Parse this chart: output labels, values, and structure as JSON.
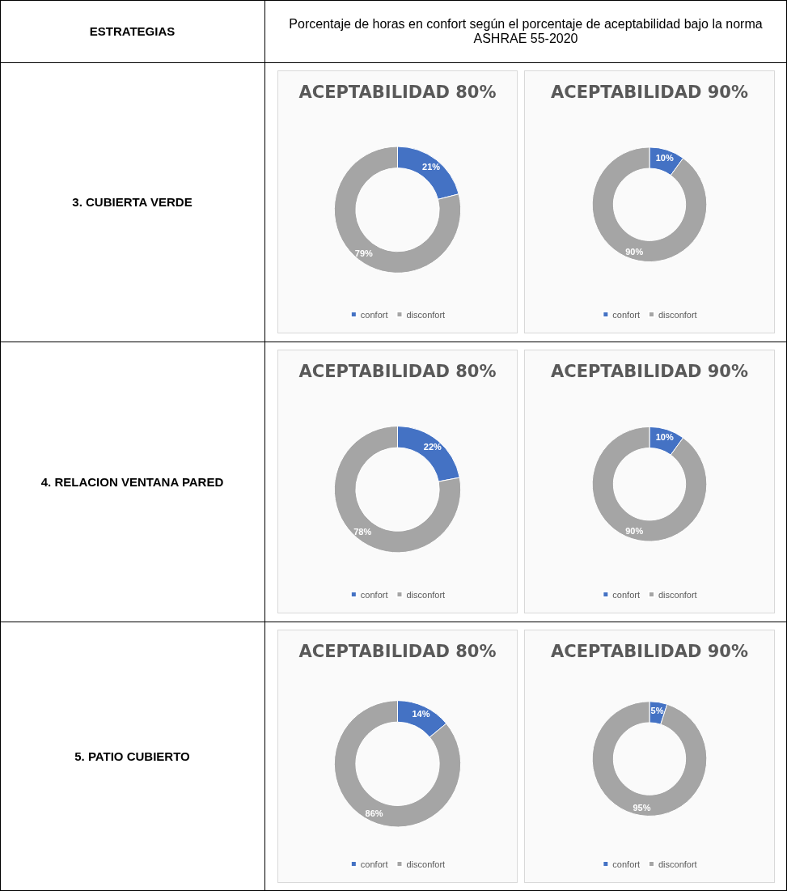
{
  "chart_data": [
    {
      "type": "other",
      "title": "ESTRATEGIAS",
      "subtitle": "Porcentaje de horas en confort según el porcentaje de aceptabilidad bajo la norma ASHRAE 55-2020",
      "annotations": [
        "3. CUBIERTA VERDE",
        "4. RELACION VENTANA PARED",
        "5. PATIO CUBIERTO"
      ]
    },
    {
      "type": "donut",
      "title": "ACEPTABILIDAD 80%",
      "categories": [
        "confort",
        "disconfort"
      ],
      "values": [
        21,
        79
      ],
      "value_labels": [
        "21%",
        "79%"
      ],
      "colors": [
        "#4472c4",
        "#a5a5a5"
      ],
      "legend": "bottom"
    },
    {
      "type": "donut",
      "title": "ACEPTABILIDAD 90%",
      "categories": [
        "confort",
        "disconfort"
      ],
      "values": [
        10,
        90
      ],
      "value_labels": [
        "10%",
        "90%"
      ],
      "colors": [
        "#4472c4",
        "#a5a5a5"
      ],
      "legend": "bottom"
    },
    {
      "type": "donut",
      "title": "ACEPTABILIDAD 80%",
      "categories": [
        "confort",
        "disconfort"
      ],
      "values": [
        22,
        78
      ],
      "value_labels": [
        "22%",
        "78%"
      ],
      "colors": [
        "#4472c4",
        "#a5a5a5"
      ],
      "legend": "bottom"
    },
    {
      "type": "donut",
      "title": "ACEPTABILIDAD 90%",
      "categories": [
        "confort",
        "disconfort"
      ],
      "values": [
        10,
        90
      ],
      "value_labels": [
        "10%",
        "90%"
      ],
      "colors": [
        "#4472c4",
        "#a5a5a5"
      ],
      "legend": "bottom"
    },
    {
      "type": "donut",
      "title": "ACEPTABILIDAD 80%",
      "categories": [
        "confort",
        "disconfort"
      ],
      "values": [
        14,
        86
      ],
      "value_labels": [
        "14%",
        "86%"
      ],
      "colors": [
        "#4472c4",
        "#a5a5a5"
      ],
      "legend": "bottom"
    },
    {
      "type": "donut",
      "title": "ACEPTABILIDAD 90%",
      "categories": [
        "confort",
        "disconfort"
      ],
      "values": [
        5,
        95
      ],
      "value_labels": [
        "5%",
        "95%"
      ],
      "colors": [
        "#4472c4",
        "#a5a5a5"
      ],
      "legend": "bottom"
    }
  ]
}
